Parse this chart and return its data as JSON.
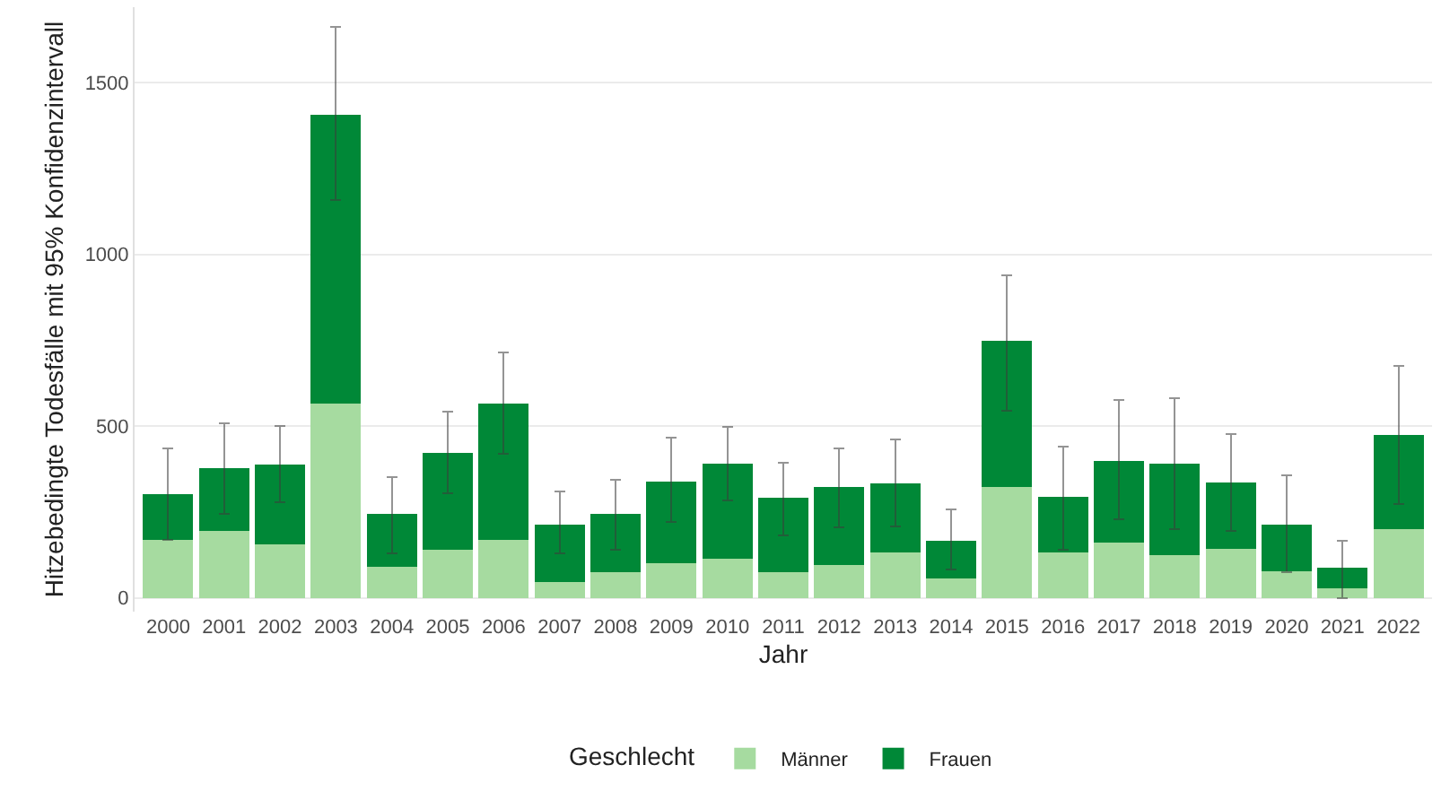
{
  "chart_data": {
    "type": "bar",
    "stacked": true,
    "xlabel": "Jahr",
    "ylabel": "Hitzebedingte Todesfälle mit 95% Konfidenzintervall",
    "legend_title": "Geschlecht",
    "legend": "bottom",
    "grid": "y",
    "categories": [
      "2000",
      "2001",
      "2002",
      "2003",
      "2004",
      "2005",
      "2006",
      "2007",
      "2008",
      "2009",
      "2010",
      "2011",
      "2012",
      "2013",
      "2014",
      "2015",
      "2016",
      "2017",
      "2018",
      "2019",
      "2020",
      "2021",
      "2022"
    ],
    "ylim": [
      -40,
      1720
    ],
    "yticks": [
      0,
      500,
      1000,
      1500
    ],
    "series": [
      {
        "name": "Männer",
        "color": "#a6dba0",
        "values": [
          168,
          194,
          157,
          567,
          90,
          139,
          168,
          47,
          74,
          101,
          113,
          74,
          95,
          132,
          57,
          323,
          132,
          162,
          124,
          142,
          78,
          28,
          201
        ]
      },
      {
        "name": "Frauen",
        "color": "#008837",
        "values": [
          134,
          185,
          232,
          840,
          155,
          284,
          399,
          167,
          170,
          237,
          279,
          217,
          228,
          201,
          110,
          425,
          161,
          238,
          268,
          195,
          136,
          59,
          274
        ],
        "errors": [
          [
            168,
            436
          ],
          [
            245,
            508
          ],
          [
            278,
            501
          ],
          [
            1158,
            1662
          ],
          [
            131,
            351
          ],
          [
            304,
            543
          ],
          [
            420,
            714
          ],
          [
            131,
            309
          ],
          [
            139,
            345
          ],
          [
            221,
            466
          ],
          [
            283,
            498
          ],
          [
            181,
            394
          ],
          [
            206,
            436
          ],
          [
            209,
            461
          ],
          [
            83,
            258
          ],
          [
            544,
            938
          ],
          [
            141,
            441
          ],
          [
            229,
            575
          ],
          [
            199,
            582
          ],
          [
            196,
            477
          ],
          [
            74,
            358
          ],
          [
            0,
            167
          ],
          [
            273,
            676
          ]
        ]
      }
    ]
  }
}
